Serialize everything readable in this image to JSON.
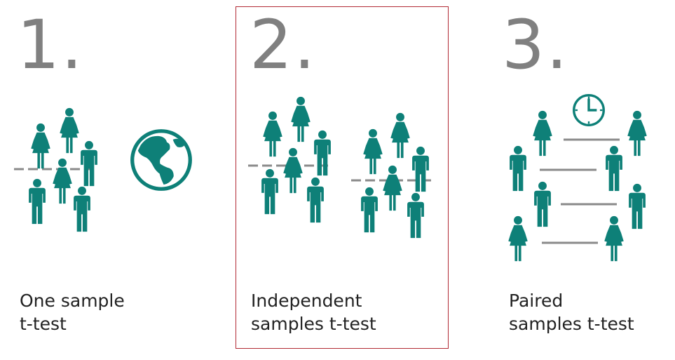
{
  "panels": [
    {
      "number": "1.",
      "caption_line1": "One sample",
      "caption_line2": "t-test"
    },
    {
      "number": "2.",
      "caption_line1": "Independent",
      "caption_line2": "samples t-test"
    },
    {
      "number": "3.",
      "caption_line1": "Paired",
      "caption_line2": "samples t-test"
    }
  ],
  "colors": {
    "figure": "#0e8078",
    "line": "#8a8a8a",
    "number": "#808080",
    "highlight": "#b22a35"
  },
  "icons": [
    "female-figure-icon",
    "male-figure-icon",
    "globe-icon",
    "clock-icon"
  ]
}
